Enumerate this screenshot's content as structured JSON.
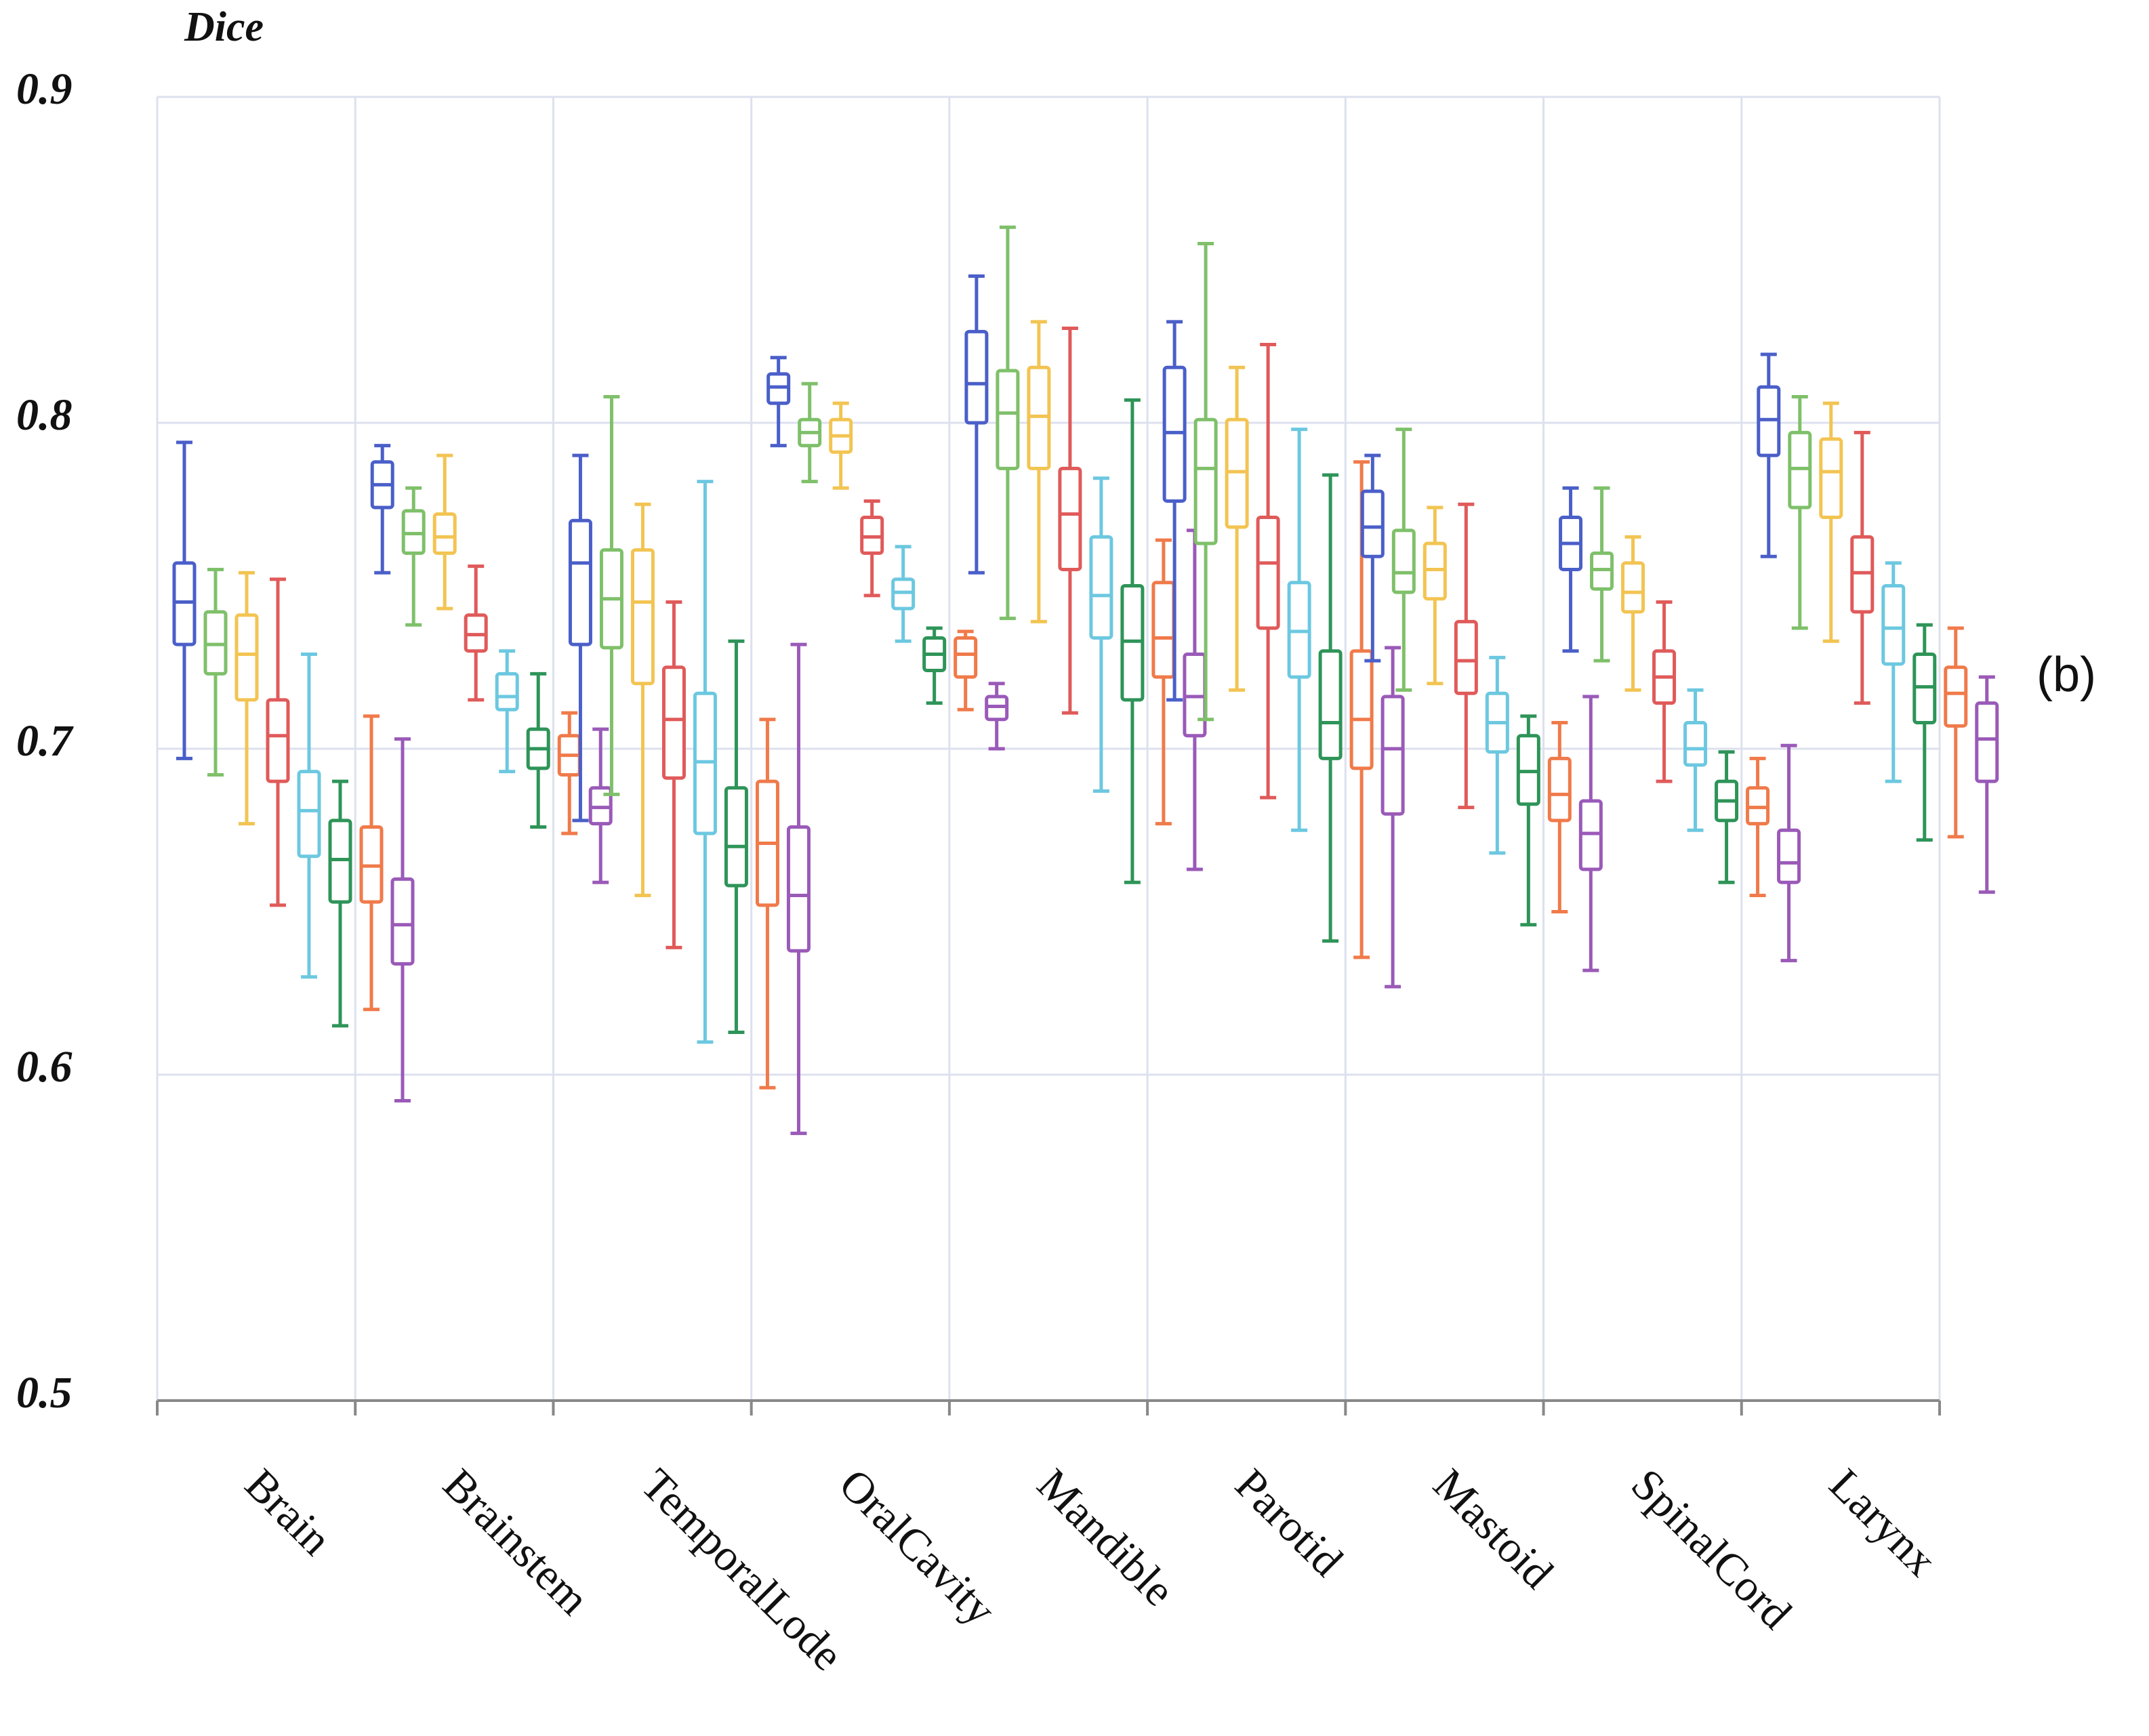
{
  "chart_data": {
    "type": "box",
    "title": "",
    "ylabel": "Dice",
    "xlabel": "",
    "panel_label": "(b)",
    "ylim": [
      0.5,
      0.9
    ],
    "yticks": [
      0.5,
      0.6,
      0.7,
      0.8,
      0.9
    ],
    "ytick_labels": [
      "0.5",
      "0.6",
      "0.7",
      "0.8",
      "0.9"
    ],
    "grid": true,
    "categories": [
      "Brain",
      "Brainstem",
      "TemporalLode",
      "OralCavity",
      "Mandible",
      "Parotid",
      "Mastoid",
      "SpinalCord",
      "Larynx"
    ],
    "series_colors": [
      "#4a5fc8",
      "#7fc06a",
      "#f2c452",
      "#e05a5a",
      "#6cc8e0",
      "#2e9458",
      "#f07a4a",
      "#9a5ab8"
    ],
    "boxes": [
      [
        [
          0.697,
          0.732,
          0.745,
          0.757,
          0.794
        ],
        [
          0.692,
          0.723,
          0.732,
          0.742,
          0.755
        ],
        [
          0.677,
          0.715,
          0.729,
          0.741,
          0.754
        ],
        [
          0.652,
          0.69,
          0.704,
          0.715,
          0.752
        ],
        [
          0.63,
          0.667,
          0.681,
          0.693,
          0.729
        ],
        [
          0.615,
          0.653,
          0.666,
          0.678,
          0.69
        ],
        [
          0.62,
          0.653,
          0.664,
          0.676,
          0.71
        ],
        [
          0.592,
          0.634,
          0.646,
          0.66,
          0.703
        ]
      ],
      [
        [
          0.754,
          0.774,
          0.781,
          0.788,
          0.793
        ],
        [
          0.738,
          0.76,
          0.766,
          0.773,
          0.78
        ],
        [
          0.743,
          0.76,
          0.765,
          0.772,
          0.79
        ],
        [
          0.715,
          0.73,
          0.735,
          0.741,
          0.756
        ],
        [
          0.693,
          0.712,
          0.716,
          0.723,
          0.73
        ],
        [
          0.676,
          0.694,
          0.7,
          0.706,
          0.723
        ],
        [
          0.674,
          0.692,
          0.698,
          0.704,
          0.711
        ],
        [
          0.659,
          0.677,
          0.682,
          0.688,
          0.706
        ]
      ],
      [
        [
          0.678,
          0.732,
          0.757,
          0.77,
          0.79
        ],
        [
          0.686,
          0.731,
          0.746,
          0.761,
          0.808
        ],
        [
          0.655,
          0.72,
          0.745,
          0.761,
          0.775
        ],
        [
          0.639,
          0.691,
          0.709,
          0.725,
          0.745
        ],
        [
          0.61,
          0.674,
          0.696,
          0.717,
          0.782
        ],
        [
          0.613,
          0.658,
          0.67,
          0.688,
          0.733
        ],
        [
          0.596,
          0.652,
          0.671,
          0.69,
          0.709
        ],
        [
          0.582,
          0.638,
          0.655,
          0.676,
          0.732
        ]
      ],
      [
        [
          0.793,
          0.806,
          0.811,
          0.815,
          0.82
        ],
        [
          0.782,
          0.793,
          0.797,
          0.801,
          0.812
        ],
        [
          0.78,
          0.791,
          0.796,
          0.801,
          0.806
        ],
        [
          0.747,
          0.76,
          0.765,
          0.771,
          0.776
        ],
        [
          0.733,
          0.743,
          0.748,
          0.752,
          0.762
        ],
        [
          0.714,
          0.724,
          0.729,
          0.734,
          0.737
        ],
        [
          0.712,
          0.722,
          0.729,
          0.734,
          0.736
        ],
        [
          0.7,
          0.709,
          0.713,
          0.716,
          0.72
        ]
      ],
      [
        [
          0.754,
          0.8,
          0.812,
          0.828,
          0.845
        ],
        [
          0.74,
          0.786,
          0.803,
          0.816,
          0.86
        ],
        [
          0.739,
          0.786,
          0.802,
          0.817,
          0.831
        ],
        [
          0.711,
          0.755,
          0.772,
          0.786,
          0.829
        ],
        [
          0.687,
          0.734,
          0.747,
          0.765,
          0.783
        ],
        [
          0.659,
          0.715,
          0.733,
          0.75,
          0.807
        ],
        [
          0.677,
          0.722,
          0.734,
          0.751,
          0.764
        ],
        [
          0.663,
          0.704,
          0.716,
          0.729,
          0.767
        ]
      ],
      [
        [
          0.715,
          0.776,
          0.797,
          0.817,
          0.831
        ],
        [
          0.709,
          0.763,
          0.786,
          0.801,
          0.855
        ],
        [
          0.718,
          0.768,
          0.785,
          0.801,
          0.817
        ],
        [
          0.685,
          0.737,
          0.757,
          0.771,
          0.824
        ],
        [
          0.675,
          0.722,
          0.736,
          0.751,
          0.798
        ],
        [
          0.641,
          0.697,
          0.708,
          0.73,
          0.784
        ],
        [
          0.636,
          0.694,
          0.709,
          0.73,
          0.788
        ],
        [
          0.627,
          0.68,
          0.7,
          0.716,
          0.731
        ]
      ],
      [
        [
          0.727,
          0.759,
          0.768,
          0.779,
          0.79
        ],
        [
          0.718,
          0.748,
          0.754,
          0.767,
          0.798
        ],
        [
          0.72,
          0.746,
          0.755,
          0.763,
          0.774
        ],
        [
          0.682,
          0.717,
          0.727,
          0.739,
          0.775
        ],
        [
          0.668,
          0.699,
          0.708,
          0.717,
          0.728
        ],
        [
          0.646,
          0.683,
          0.693,
          0.704,
          0.71
        ],
        [
          0.65,
          0.678,
          0.686,
          0.697,
          0.708
        ],
        [
          0.632,
          0.663,
          0.674,
          0.684,
          0.716
        ]
      ],
      [
        [
          0.73,
          0.755,
          0.763,
          0.771,
          0.78
        ],
        [
          0.727,
          0.749,
          0.755,
          0.76,
          0.78
        ],
        [
          0.718,
          0.742,
          0.748,
          0.757,
          0.765
        ],
        [
          0.69,
          0.714,
          0.722,
          0.73,
          0.745
        ],
        [
          0.675,
          0.695,
          0.7,
          0.708,
          0.718
        ],
        [
          0.659,
          0.678,
          0.684,
          0.69,
          0.699
        ],
        [
          0.655,
          0.677,
          0.682,
          0.688,
          0.697
        ],
        [
          0.635,
          0.659,
          0.665,
          0.675,
          0.701
        ]
      ],
      [
        [
          0.759,
          0.79,
          0.801,
          0.811,
          0.821
        ],
        [
          0.737,
          0.774,
          0.786,
          0.797,
          0.808
        ],
        [
          0.733,
          0.771,
          0.785,
          0.795,
          0.806
        ],
        [
          0.714,
          0.742,
          0.754,
          0.765,
          0.797
        ],
        [
          0.69,
          0.726,
          0.737,
          0.75,
          0.757
        ],
        [
          0.672,
          0.708,
          0.719,
          0.729,
          0.738
        ],
        [
          0.673,
          0.707,
          0.717,
          0.725,
          0.737
        ],
        [
          0.656,
          0.69,
          0.703,
          0.714,
          0.722
        ]
      ]
    ]
  }
}
